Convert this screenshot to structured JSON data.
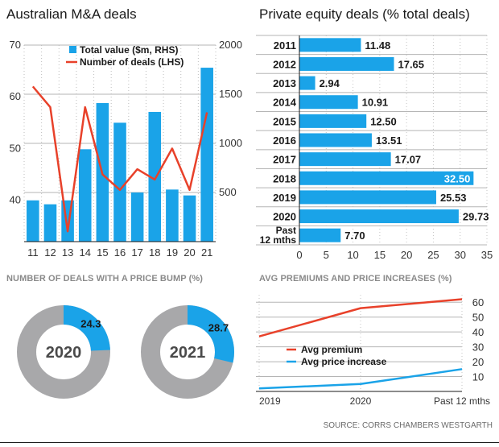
{
  "panels": {
    "ma": {
      "title": "Australian M&A deals"
    },
    "pe": {
      "title": "Private equity deals (% total deals)"
    },
    "bump": {
      "title": "NUMBER OF DEALS WITH A PRICE BUMP (%)"
    },
    "prem": {
      "title": "AVG PREMIUMS AND PRICE INCREASES (%)"
    }
  },
  "source": "SOURCE: CORRS CHAMBERS WESTGARTH",
  "colors": {
    "blue": "#1aa3e8",
    "red": "#e8412a",
    "grey": "#a8a8aa",
    "grid": "#b5b5b5"
  },
  "chart_data": [
    {
      "type": "bar",
      "categories": [
        "11",
        "12",
        "13",
        "14",
        "15",
        "16",
        "17",
        "18",
        "19",
        "20",
        "21"
      ],
      "series": [
        {
          "name": "Total value ($m, RHS)",
          "axis": "right",
          "values": [
            420,
            380,
            420,
            940,
            1410,
            1210,
            500,
            1320,
            530,
            470,
            1770
          ]
        },
        {
          "name": "Number of deals (LHS)",
          "axis": "left",
          "type": "line",
          "values": [
            62,
            58,
            34,
            58,
            45,
            42,
            46,
            44,
            50,
            42,
            57
          ]
        }
      ],
      "y_left": {
        "ticks": [
          40,
          50,
          60,
          70
        ],
        "range": [
          32,
          70
        ]
      },
      "y_right": {
        "ticks": [
          500,
          1000,
          1500,
          2000
        ],
        "range": [
          0,
          2000
        ]
      },
      "legend": "top-center",
      "grid": true
    },
    {
      "type": "bar",
      "orientation": "horizontal",
      "categories": [
        "2011",
        "2012",
        "2013",
        "2014",
        "2015",
        "2016",
        "2017",
        "2018",
        "2019",
        "2020",
        "Past 12 mths"
      ],
      "values": [
        11.48,
        17.65,
        2.94,
        10.91,
        12.5,
        13.51,
        17.07,
        32.5,
        25.53,
        29.73,
        7.7
      ],
      "value_labels": [
        "11.48",
        "17.65",
        "2.94",
        "10.91",
        "12.50",
        "13.51",
        "17.07",
        "32.50",
        "25.53",
        "29.73",
        "7.70"
      ],
      "x_ticks": [
        0,
        5,
        10,
        15,
        20,
        25,
        30,
        35
      ],
      "xlim": [
        0,
        35
      ],
      "grid": true
    },
    {
      "type": "pie",
      "variant": "donut",
      "label": "2020",
      "value": 24.3,
      "value_label": "24.3"
    },
    {
      "type": "pie",
      "variant": "donut",
      "label": "2021",
      "value": 28.7,
      "value_label": "28.7"
    },
    {
      "type": "line",
      "x": [
        "2019",
        "2020",
        "Past 12 mths"
      ],
      "series": [
        {
          "name": "Avg premium",
          "values": [
            37,
            56,
            62
          ]
        },
        {
          "name": "Avg price increase",
          "values": [
            2,
            5,
            15
          ]
        }
      ],
      "y_ticks": [
        10,
        20,
        30,
        40,
        50,
        60
      ],
      "ylim": [
        0,
        65
      ],
      "grid": true,
      "legend": "center-left"
    }
  ]
}
